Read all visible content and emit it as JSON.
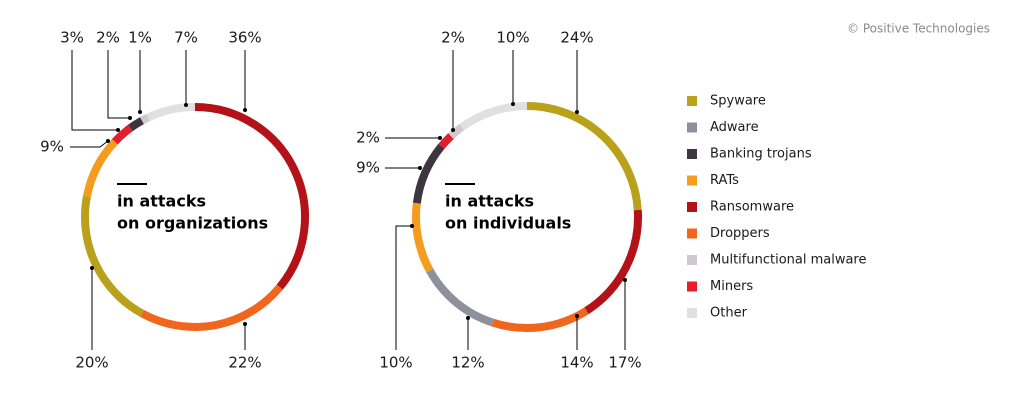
{
  "copyright": "© Positive Technologies",
  "legend": [
    {
      "name": "Spyware",
      "color": "#b9a11b"
    },
    {
      "name": "Adware",
      "color": "#8e909c"
    },
    {
      "name": "Banking trojans",
      "color": "#3f3541"
    },
    {
      "name": "RATs",
      "color": "#f59c1f"
    },
    {
      "name": "Ransomware",
      "color": "#b31219"
    },
    {
      "name": "Droppers",
      "color": "#f0661c"
    },
    {
      "name": "Multifunctional malware",
      "color": "#d0c8d1"
    },
    {
      "name": "Miners",
      "color": "#e41e2d"
    },
    {
      "name": "Other",
      "color": "#e0e0e0"
    }
  ],
  "chart_data": [
    {
      "type": "pie",
      "title_lines": [
        "in attacks",
        "on organizations"
      ],
      "categories": [
        "Ransomware",
        "Droppers",
        "Spyware",
        "RATs",
        "Miners",
        "Banking trojans",
        "Multifunctional malware",
        "Other"
      ],
      "colors": [
        "#b31219",
        "#f0661c",
        "#b9a11b",
        "#f59c1f",
        "#e41e2d",
        "#3f3541",
        "#d0c8d1",
        "#e0e0e0"
      ],
      "values": [
        36,
        22,
        20,
        9,
        3,
        2,
        1,
        7
      ],
      "value_labels": [
        "36%",
        "22%",
        "20%",
        "9%",
        "3%",
        "2%",
        "1%",
        "7%"
      ]
    },
    {
      "type": "pie",
      "title_lines": [
        "in attacks",
        "on individuals"
      ],
      "categories": [
        "Spyware",
        "Ransomware",
        "Droppers",
        "Adware",
        "RATs",
        "Banking trojans",
        "Miners",
        "Multifunctional malware",
        "Other"
      ],
      "colors": [
        "#b9a11b",
        "#b31219",
        "#f0661c",
        "#8e909c",
        "#f59c1f",
        "#3f3541",
        "#e41e2d",
        "#d0c8d1",
        "#e0e0e0"
      ],
      "values": [
        24,
        17,
        14,
        12,
        10,
        9,
        2,
        2,
        10
      ],
      "value_labels": [
        "24%",
        "17%",
        "14%",
        "12%",
        "10%",
        "9%",
        "2%",
        "2%",
        "10%"
      ]
    }
  ]
}
